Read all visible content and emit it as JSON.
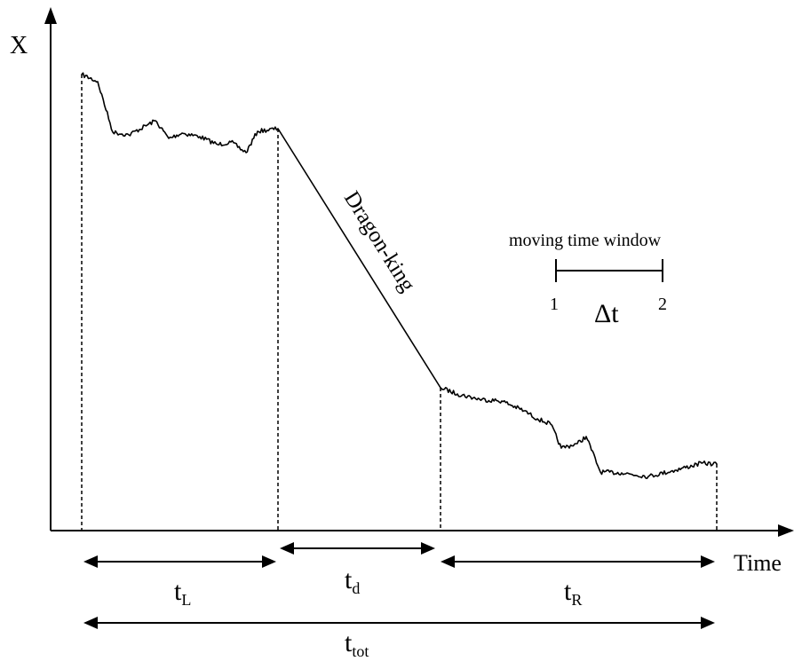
{
  "axes": {
    "y_label": "X",
    "x_label": "Time"
  },
  "trace_label": "Dragon-king",
  "intervals": {
    "left": {
      "base": "t",
      "sub": "L"
    },
    "drop": {
      "base": "t",
      "sub": "d"
    },
    "right": {
      "base": "t",
      "sub": "R"
    },
    "total": {
      "base": "t",
      "sub": "tot"
    }
  },
  "window": {
    "caption": "moving time window",
    "start_label": "1",
    "end_label": "2",
    "width_label": "Δt"
  }
}
